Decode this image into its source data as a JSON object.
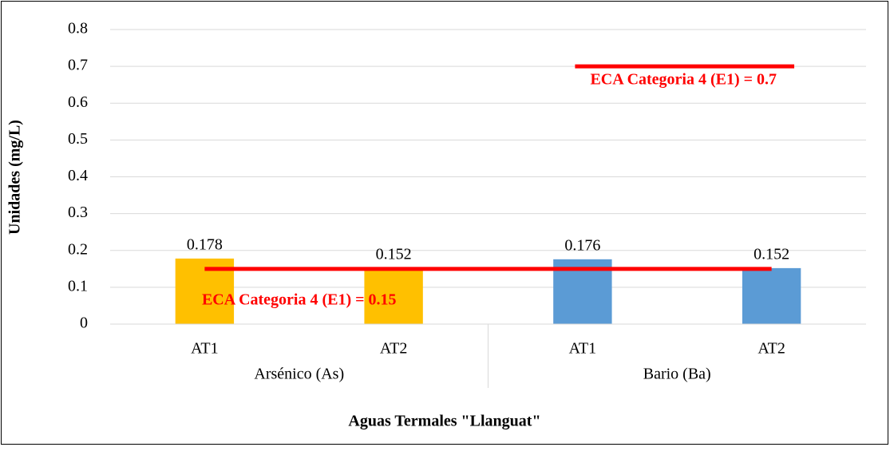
{
  "chart_data": {
    "type": "bar",
    "ylabel": "Unidades (mg/L)",
    "xlabel": "Aguas Termales \"Llanguat\"",
    "ylim": [
      0,
      0.8
    ],
    "yticks": [
      0,
      0.1,
      0.2,
      0.3,
      0.4,
      0.5,
      0.6,
      0.7,
      0.8
    ],
    "grid": true,
    "groups": [
      {
        "name": "Arsénico (As)",
        "color": "#ffc000",
        "categories": [
          "AT1",
          "AT2"
        ],
        "values": [
          0.178,
          0.152
        ],
        "reference_line": {
          "value": 0.15,
          "label": "ECA Categoria 4 (E1) = 0.15",
          "color": "#ff0000"
        }
      },
      {
        "name": "Bario (Ba)",
        "color": "#5b9bd5",
        "categories": [
          "AT1",
          "AT2"
        ],
        "values": [
          0.176,
          0.152
        ],
        "reference_line": {
          "value": 0.7,
          "label": "ECA Categoria 4 (E1) = 0.7",
          "color": "#ff0000"
        }
      }
    ]
  }
}
